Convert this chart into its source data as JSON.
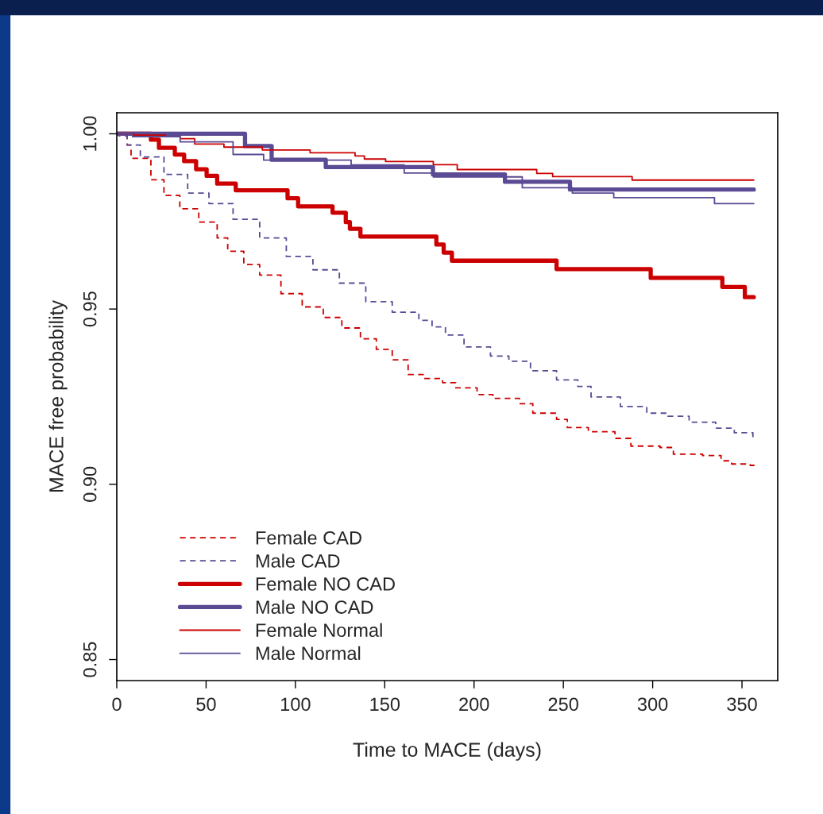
{
  "chart_data": {
    "type": "step",
    "xlabel": "Time to MACE (days)",
    "ylabel": "MACE free probability",
    "xlim": [
      0,
      370
    ],
    "ylim": [
      0.844,
      1.006
    ],
    "xticks": [
      0,
      50,
      100,
      150,
      200,
      250,
      300,
      350
    ],
    "yticks": [
      {
        "value": 0.85,
        "label": "0.85"
      },
      {
        "value": 0.9,
        "label": "0.90"
      },
      {
        "value": 0.95,
        "label": "0.95"
      },
      {
        "value": 1.0,
        "label": "1.00"
      }
    ],
    "grid": false,
    "legend": "bottom left",
    "series": [
      {
        "name": "Female CAD",
        "color": "#cc0000",
        "line_style": "dashed",
        "x": [
          0,
          5.8,
          8,
          19.1,
          26.4,
          35.3,
          45.9,
          56.2,
          62.1,
          71.1,
          80,
          91.9,
          103.8,
          115.6,
          126,
          136.4,
          145.3,
          154.2,
          163.1,
          172,
          182.4,
          189.8,
          201.7,
          210.6,
          225.4,
          232.9,
          246.2,
          252.2,
          264,
          278.9,
          287.8,
          304.1,
          311.6,
          327.9,
          338.3,
          344.2,
          354.6,
          357
        ],
        "values": [
          1.0,
          0.9968,
          0.993,
          0.9869,
          0.9824,
          0.9786,
          0.9748,
          0.9703,
          0.9665,
          0.9627,
          0.9597,
          0.9544,
          0.9506,
          0.9476,
          0.9446,
          0.9415,
          0.9385,
          0.9355,
          0.9313,
          0.9302,
          0.929,
          0.9275,
          0.9256,
          0.9245,
          0.923,
          0.9203,
          0.9185,
          0.9162,
          0.915,
          0.9131,
          0.9109,
          0.9105,
          0.9086,
          0.9082,
          0.9067,
          0.9058,
          0.9054,
          0.9054
        ]
      },
      {
        "name": "Male CAD",
        "color": "#5b4a94",
        "line_style": "dashed",
        "x": [
          0,
          1.3,
          5.8,
          13.2,
          26.4,
          39.7,
          51.6,
          65.1,
          80,
          94.9,
          109.8,
          124.6,
          139.4,
          154.2,
          169.1,
          176.5,
          184,
          194.4,
          209.2,
          219.5,
          231.6,
          246.2,
          258.1,
          265.5,
          281.9,
          296.7,
          308.6,
          320.4,
          335.3,
          345.7,
          356.1
        ],
        "values": [
          1.0,
          0.9994,
          0.9968,
          0.9934,
          0.9884,
          0.9831,
          0.9801,
          0.9756,
          0.9703,
          0.965,
          0.9612,
          0.9574,
          0.9521,
          0.9491,
          0.9468,
          0.9449,
          0.9426,
          0.9392,
          0.9366,
          0.9351,
          0.9324,
          0.9298,
          0.9279,
          0.9249,
          0.9222,
          0.9203,
          0.9194,
          0.9177,
          0.916,
          0.9147,
          0.9131
        ]
      },
      {
        "name": "Female NO CAD",
        "color": "#cc0000",
        "line_style": "solid",
        "x": [
          0,
          19.1,
          23.6,
          32.5,
          37.7,
          44.4,
          50.3,
          56.2,
          66.6,
          95.6,
          101.5,
          120.8,
          128.2,
          130.5,
          136.4,
          178.9,
          183,
          187.6,
          246.2,
          298.9,
          339,
          351.6,
          356.6
        ],
        "values": [
          1.0,
          0.9983,
          0.996,
          0.9941,
          0.9922,
          0.9899,
          0.988,
          0.9858,
          0.9839,
          0.9816,
          0.9793,
          0.9775,
          0.9748,
          0.9729,
          0.9707,
          0.9684,
          0.9661,
          0.9638,
          0.9614,
          0.9589,
          0.9563,
          0.9534,
          0.9534
        ]
      },
      {
        "name": "Male NO CAD",
        "color": "#5b4a94",
        "line_style": "solid",
        "x": [
          0,
          71.8,
          86.7,
          117,
          177,
          217.3,
          253.7,
          356.6
        ],
        "values": [
          1.0,
          0.9965,
          0.9926,
          0.9905,
          0.9884,
          0.9863,
          0.9841,
          0.9841
        ]
      },
      {
        "name": "Female Normal",
        "color": "#cc0000",
        "line_style": "solid",
        "x": [
          0,
          9.5,
          27.3,
          35.5,
          43.6,
          60,
          81.5,
          108.2,
          133.4,
          138.6,
          150.5,
          177.2,
          190.6,
          235.1,
          244,
          288.5,
          356.6
        ],
        "values": [
          1.0,
          0.9996,
          0.9992,
          0.9986,
          0.9971,
          0.9962,
          0.9954,
          0.9946,
          0.9937,
          0.9928,
          0.9921,
          0.9912,
          0.9898,
          0.9887,
          0.9878,
          0.9868,
          0.9868
        ]
      },
      {
        "name": "Male Normal",
        "color": "#5b4a94",
        "line_style": "solid",
        "x": [
          0,
          8.8,
          35.5,
          65.1,
          82.2,
          131.2,
          160.9,
          177.2,
          227,
          255,
          278.2,
          334.6,
          356.6
        ],
        "values": [
          1.0,
          0.9992,
          0.9977,
          0.9941,
          0.9925,
          0.9911,
          0.9888,
          0.9877,
          0.9846,
          0.9831,
          0.9818,
          0.9801,
          0.9801
        ]
      }
    ]
  }
}
